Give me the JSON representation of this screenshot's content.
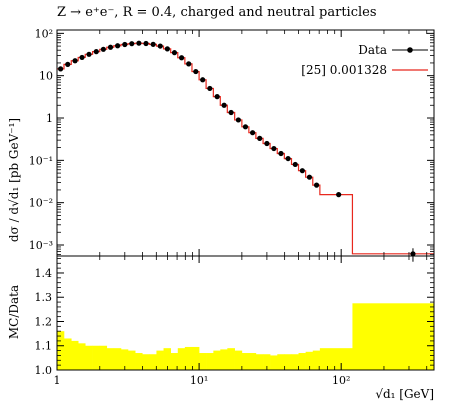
{
  "chart_data": [
    {
      "type": "line",
      "title": "Z → e⁺e⁻, R = 0.4, charged and neutral particles",
      "ylabel": "dσ / d√d₁  [pb GeV⁻¹]",
      "xlabel": "",
      "xscale": "log",
      "yscale": "log",
      "xlim": [
        1,
        450
      ],
      "ylim": [
        0.00055,
        120
      ],
      "legend_placement": "top-right",
      "x_tick_labels": [
        "1",
        "10¹",
        "10²"
      ],
      "y_tick_labels": [
        "10⁻³",
        "10⁻²",
        "10⁻¹",
        "1",
        "10",
        "10²"
      ],
      "series": [
        {
          "name": "Data",
          "style": "points",
          "color": "#000000",
          "x": [
            1.06,
            1.19,
            1.34,
            1.5,
            1.68,
            1.89,
            2.12,
            2.38,
            2.67,
            3.0,
            3.36,
            3.77,
            4.23,
            4.75,
            5.33,
            5.98,
            6.71,
            7.53,
            8.45,
            9.48,
            10.6,
            11.9,
            13.4,
            15.0,
            16.8,
            18.9,
            21.2,
            23.8,
            26.7,
            30.0,
            33.6,
            37.7,
            42.3,
            47.5,
            53.3,
            59.8,
            67.1,
            96.0,
            320.0
          ],
          "y": [
            14.5,
            18.5,
            22.5,
            27.0,
            32.0,
            37.0,
            42.0,
            47.0,
            51.0,
            54.5,
            57.0,
            58.5,
            57.5,
            55.0,
            50.0,
            43.0,
            35.0,
            26.5,
            19.0,
            12.5,
            8.0,
            5.0,
            3.2,
            2.0,
            1.35,
            0.9,
            0.62,
            0.45,
            0.33,
            0.25,
            0.19,
            0.145,
            0.11,
            0.08,
            0.057,
            0.04,
            0.026,
            0.0155,
            0.00062
          ]
        },
        {
          "name": "[25] 0.001328",
          "style": "histogram",
          "color": "#e8281e",
          "edges": [
            1.0,
            1.12,
            1.26,
            1.41,
            1.58,
            1.78,
            2.0,
            2.24,
            2.51,
            2.82,
            3.16,
            3.55,
            3.98,
            4.47,
            5.01,
            5.62,
            6.31,
            7.08,
            7.94,
            8.91,
            10.0,
            11.2,
            12.6,
            14.1,
            15.8,
            17.8,
            20.0,
            22.4,
            25.1,
            28.2,
            31.6,
            35.5,
            39.8,
            44.7,
            50.1,
            56.2,
            63.1,
            70.8,
            120.0,
            450.0
          ],
          "values": [
            14.5,
            18.5,
            22.5,
            27.0,
            32.0,
            37.0,
            42.0,
            47.0,
            51.0,
            54.5,
            57.0,
            58.5,
            57.5,
            55.0,
            50.0,
            43.0,
            35.0,
            26.5,
            19.0,
            12.5,
            8.0,
            5.0,
            3.2,
            2.0,
            1.35,
            0.9,
            0.62,
            0.45,
            0.33,
            0.25,
            0.19,
            0.145,
            0.11,
            0.08,
            0.057,
            0.04,
            0.026,
            0.0155,
            0.00062
          ]
        }
      ]
    },
    {
      "type": "area",
      "title": "",
      "ylabel": "MC/Data",
      "xlabel": "√d₁ [GeV]",
      "xscale": "log",
      "xlim": [
        1,
        450
      ],
      "ylim": [
        1.0,
        1.47
      ],
      "x_tick_labels": [
        "1",
        "10¹",
        "10²"
      ],
      "y_tick_labels": [
        "1.0",
        "1.1",
        "1.2",
        "1.3",
        "1.4"
      ],
      "band_color": "#ffff00",
      "band": {
        "edges": [
          1.0,
          1.12,
          1.26,
          1.41,
          1.58,
          1.78,
          2.0,
          2.24,
          2.51,
          2.82,
          3.16,
          3.55,
          3.98,
          4.47,
          5.01,
          5.62,
          6.31,
          7.08,
          7.94,
          8.91,
          10.0,
          11.2,
          12.6,
          14.1,
          15.8,
          17.8,
          20.0,
          22.4,
          25.1,
          28.2,
          31.6,
          35.5,
          39.8,
          44.7,
          50.1,
          56.2,
          63.1,
          70.8,
          120.0,
          450.0
        ],
        "upper": [
          1.16,
          1.13,
          1.12,
          1.11,
          1.1,
          1.1,
          1.1,
          1.09,
          1.09,
          1.085,
          1.08,
          1.07,
          1.065,
          1.065,
          1.08,
          1.09,
          1.07,
          1.09,
          1.095,
          1.095,
          1.07,
          1.07,
          1.08,
          1.085,
          1.09,
          1.08,
          1.07,
          1.07,
          1.065,
          1.065,
          1.06,
          1.065,
          1.065,
          1.065,
          1.07,
          1.075,
          1.08,
          1.09,
          1.275
        ],
        "lower": [
          1.0,
          1.0,
          1.0,
          1.0,
          1.0,
          1.0,
          1.0,
          1.0,
          1.0,
          1.0,
          1.0,
          1.0,
          1.0,
          1.0,
          1.0,
          1.0,
          1.0,
          1.0,
          1.0,
          1.0,
          1.0,
          1.0,
          1.0,
          1.0,
          1.0,
          1.0,
          1.0,
          1.0,
          1.0,
          1.0,
          1.0,
          1.0,
          1.0,
          1.0,
          1.0,
          1.0,
          1.0,
          1.0,
          1.0
        ]
      }
    }
  ]
}
